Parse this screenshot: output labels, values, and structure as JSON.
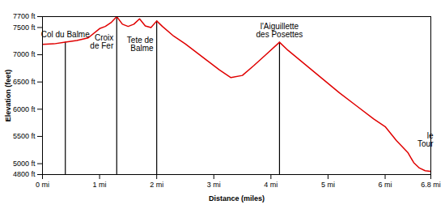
{
  "chart_data": {
    "type": "line",
    "x_label": "Distance (miles)",
    "y_label": "Elevation (feet)",
    "color": "#e00000",
    "grid": false,
    "x": [
      0,
      0.2,
      0.4,
      0.6,
      0.8,
      1.0,
      1.1,
      1.2,
      1.3,
      1.4,
      1.5,
      1.6,
      1.7,
      1.8,
      1.9,
      2.0,
      2.1,
      2.3,
      2.5,
      2.7,
      2.9,
      3.1,
      3.3,
      3.5,
      3.7,
      3.9,
      4.15,
      4.3,
      4.6,
      4.9,
      5.2,
      5.5,
      5.8,
      6.0,
      6.2,
      6.4,
      6.5,
      6.6,
      6.7,
      6.8
    ],
    "values": [
      7190,
      7200,
      7230,
      7260,
      7310,
      7480,
      7520,
      7590,
      7700,
      7560,
      7520,
      7560,
      7660,
      7530,
      7500,
      7620,
      7520,
      7340,
      7200,
      7040,
      6880,
      6720,
      6580,
      6620,
      6800,
      6990,
      7230,
      7080,
      6820,
      6560,
      6300,
      6060,
      5820,
      5680,
      5420,
      5200,
      5020,
      4920,
      4870,
      4860
    ],
    "xlim": [
      0,
      6.8
    ],
    "xticks": [
      {
        "value": 0,
        "label": "0 mi"
      },
      {
        "value": 1,
        "label": "1 mi"
      },
      {
        "value": 2,
        "label": "2 mi"
      },
      {
        "value": 3,
        "label": "3 mi"
      },
      {
        "value": 4,
        "label": "4 mi"
      },
      {
        "value": 5,
        "label": "5 mi"
      },
      {
        "value": 6,
        "label": "6 mi"
      },
      {
        "value": 6.8,
        "label": "6.8 mi"
      }
    ],
    "ylim": [
      4800,
      7700
    ],
    "yticks": [
      {
        "value": 4800,
        "label": "4800 ft"
      },
      {
        "value": 5000,
        "label": "5000 ft"
      },
      {
        "value": 5500,
        "label": "5500 ft"
      },
      {
        "value": 6000,
        "label": "6000 ft"
      },
      {
        "value": 6500,
        "label": "6500 ft"
      },
      {
        "value": 7000,
        "label": "7000 ft"
      },
      {
        "value": 7500,
        "label": "7500 ft"
      },
      {
        "value": 7700,
        "label": "7700 ft"
      }
    ],
    "annotations": [
      {
        "x": 0.4,
        "y": 7230,
        "label": "Col du Balme"
      },
      {
        "x": 1.3,
        "y": 7700,
        "label": "Croix\nde Fer"
      },
      {
        "x": 2.0,
        "y": 7620,
        "label": "Tete de\nBalme"
      },
      {
        "x": 4.15,
        "y": 7230,
        "label": "l'Aiguillette\ndes Posettes"
      },
      {
        "x": 6.8,
        "y": 4860,
        "label": "le\nTour"
      }
    ]
  }
}
